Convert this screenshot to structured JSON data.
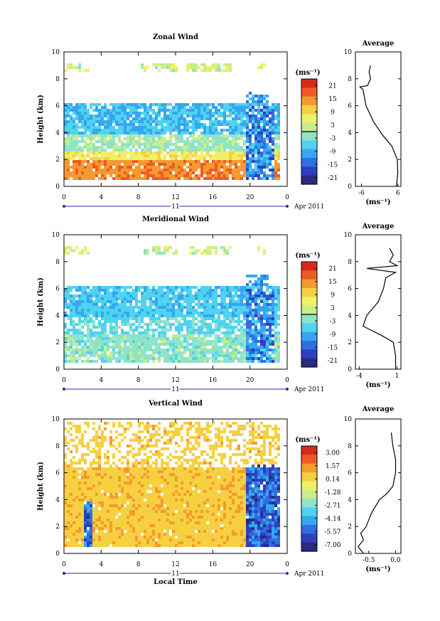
{
  "chart_data": [
    {
      "type": "heatmap",
      "title": "Zonal Wind",
      "ylabel": "Height (km)",
      "x_ticks": [
        "0",
        "4",
        "8",
        "12",
        "16",
        "20",
        "0"
      ],
      "xlim": [
        0,
        24
      ],
      "y_ticks": [
        "0",
        "2",
        "4",
        "6",
        "8",
        "10"
      ],
      "ylim": [
        0,
        10
      ],
      "date_axis": {
        "day": "11",
        "month_label": "Apr 2011"
      },
      "colorbar": {
        "unit": "(ms⁻¹)",
        "ticks": [
          "21",
          "15",
          "9",
          "3",
          "-3",
          "-9",
          "-15",
          "-21"
        ],
        "range": [
          -24,
          24
        ]
      },
      "field": {
        "low_band_value": 15,
        "mid_band_value": -1,
        "upper_band_value": -8,
        "top_value": 3
      },
      "average": {
        "title": "Average",
        "xlabel": "(ms⁻¹)",
        "x_ticks": [
          "-6",
          "6"
        ],
        "xlim": [
          -8,
          7
        ],
        "y_ticks": [
          "0",
          "2",
          "4",
          "6",
          "8",
          "10"
        ],
        "profile": [
          [
            5.5,
            0
          ],
          [
            6,
            1
          ],
          [
            5.8,
            2
          ],
          [
            4,
            3
          ],
          [
            1,
            3.8
          ],
          [
            -2,
            4.8
          ],
          [
            -4.5,
            6
          ],
          [
            -5.5,
            7.2
          ],
          [
            -6.5,
            7.4
          ],
          [
            -4,
            7.5
          ],
          [
            -3,
            8
          ],
          [
            -3.5,
            8.5
          ],
          [
            -3,
            9
          ]
        ]
      }
    },
    {
      "type": "heatmap",
      "title": "Meridional Wind",
      "ylabel": "Height (km)",
      "x_ticks": [
        "0",
        "4",
        "8",
        "12",
        "16",
        "20",
        "0"
      ],
      "xlim": [
        0,
        24
      ],
      "y_ticks": [
        "0",
        "2",
        "4",
        "6",
        "8",
        "10"
      ],
      "ylim": [
        0,
        10
      ],
      "date_axis": {
        "day": "11",
        "month_label": "Apr 2011"
      },
      "colorbar": {
        "unit": "(ms⁻¹)",
        "ticks": [
          "21",
          "15",
          "9",
          "3",
          "-3",
          "-9",
          "-15",
          "-21"
        ],
        "range": [
          -24,
          24
        ]
      },
      "field": {
        "low_band_value": -2,
        "mid_band_value": -5,
        "upper_band_value": -7,
        "top_value": 3
      },
      "average": {
        "title": "Average",
        "xlabel": "(ms⁻¹)",
        "x_ticks": [
          "-4",
          "1"
        ],
        "xlim": [
          -4.5,
          1.5
        ],
        "y_ticks": [
          "0",
          "2",
          "4",
          "6",
          "8",
          "10"
        ],
        "profile": [
          [
            0.8,
            0
          ],
          [
            0.8,
            1
          ],
          [
            0.5,
            2
          ],
          [
            -1,
            2.5
          ],
          [
            -3.5,
            3.2
          ],
          [
            -3,
            4
          ],
          [
            -1.5,
            5
          ],
          [
            -0.8,
            6
          ],
          [
            -0.5,
            6.8
          ],
          [
            0.8,
            7.2
          ],
          [
            -3,
            7.5
          ],
          [
            1,
            7.7
          ],
          [
            0,
            8
          ],
          [
            0.5,
            8.5
          ],
          [
            0,
            9
          ]
        ]
      }
    },
    {
      "type": "heatmap",
      "title": "Vertical Wind",
      "ylabel": "Height (km)",
      "xlabel": "Local Time",
      "x_ticks": [
        "0",
        "4",
        "8",
        "12",
        "16",
        "20",
        "0"
      ],
      "xlim": [
        0,
        24
      ],
      "y_ticks": [
        "0",
        "2",
        "4",
        "6",
        "8",
        "10"
      ],
      "ylim": [
        0,
        10
      ],
      "date_axis": {
        "day": "11",
        "month_label": "Apr 2011"
      },
      "colorbar": {
        "unit": "(ms⁻¹)",
        "ticks": [
          "3.00",
          "1.57",
          "0.14",
          "-1.28",
          "-2.71",
          "-4.14",
          "-5.57",
          "-7.00"
        ],
        "range": [
          -7.7,
          3.7
        ]
      },
      "field": {
        "background_value": 0.6,
        "downdraft_value": -5.5
      },
      "average": {
        "title": "Average",
        "xlabel": "(ms⁻¹)",
        "x_ticks": [
          "-0.5",
          "0.0"
        ],
        "xlim": [
          -0.75,
          0.1
        ],
        "y_ticks": [
          "0",
          "2",
          "4",
          "6",
          "8",
          "10"
        ],
        "profile": [
          [
            -0.6,
            0
          ],
          [
            -0.7,
            0.5
          ],
          [
            -0.6,
            1
          ],
          [
            -0.65,
            1.5
          ],
          [
            -0.55,
            2
          ],
          [
            -0.5,
            2.5
          ],
          [
            -0.45,
            3
          ],
          [
            -0.3,
            4
          ],
          [
            -0.15,
            4.5
          ],
          [
            -0.05,
            5
          ],
          [
            0,
            6
          ],
          [
            0,
            7
          ],
          [
            -0.05,
            8
          ],
          [
            -0.08,
            9
          ]
        ]
      }
    }
  ]
}
